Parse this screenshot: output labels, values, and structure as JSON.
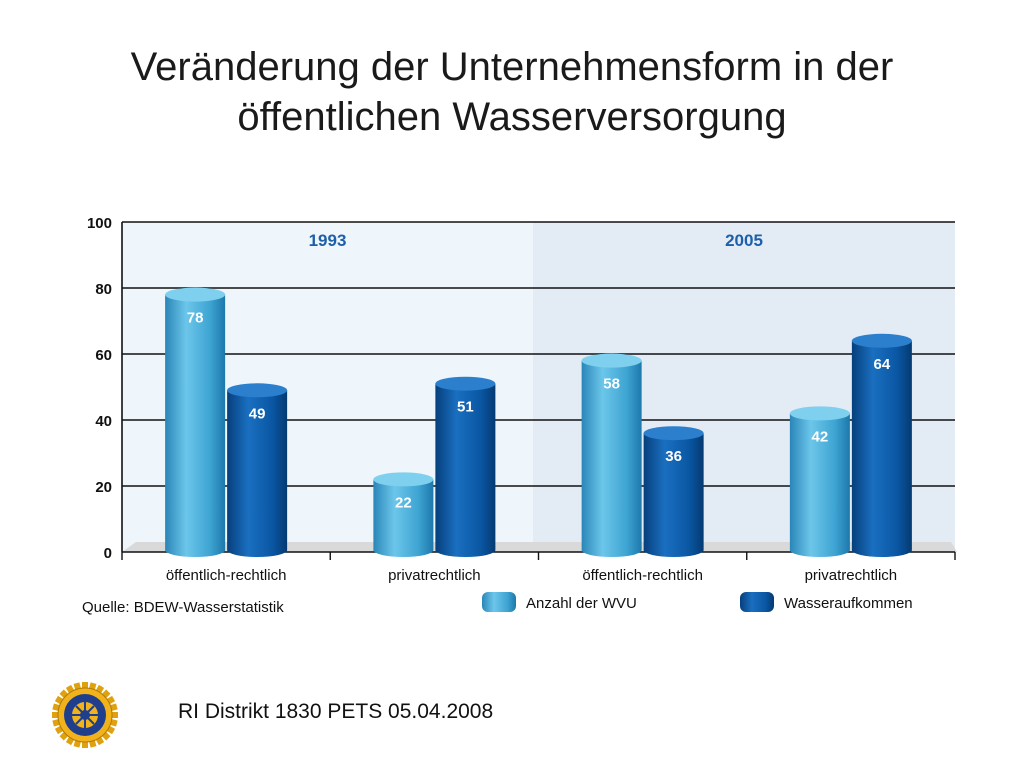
{
  "slide": {
    "title_line1": "Veränderung der Unternehmensform in der",
    "title_line2": "öffentlichen Wasserversorgung",
    "footer": "RI Distrikt 1830 PETS 05.04.2008",
    "logo_text": "ROTARY INTERNATIONAL"
  },
  "chart_data": {
    "type": "bar",
    "groups": [
      "1993",
      "2005"
    ],
    "categories": [
      "öffentlich-rechtlich",
      "privatrechtlich",
      "öffentlich-rechtlich",
      "privatrechtlich"
    ],
    "category_group": [
      "1993",
      "1993",
      "2005",
      "2005"
    ],
    "series": [
      {
        "name": "Anzahl der WVU",
        "values": [
          78,
          22,
          58,
          42
        ],
        "color": "#4bb0d8"
      },
      {
        "name": "Wasseraufkommen",
        "values": [
          49,
          51,
          36,
          64
        ],
        "color": "#0a5aa8"
      }
    ],
    "ylim": [
      0,
      100
    ],
    "yticks": [
      0,
      20,
      40,
      60,
      80,
      100
    ],
    "grid": true,
    "legend_position": "bottom-right",
    "source": "Quelle: BDEW-Wasserstatistik",
    "colors": {
      "panel_1993": "#eef5fb",
      "panel_2005": "#e3ebf5",
      "group_label": "#1d5fa8",
      "floor": "#d9d9d9"
    }
  }
}
